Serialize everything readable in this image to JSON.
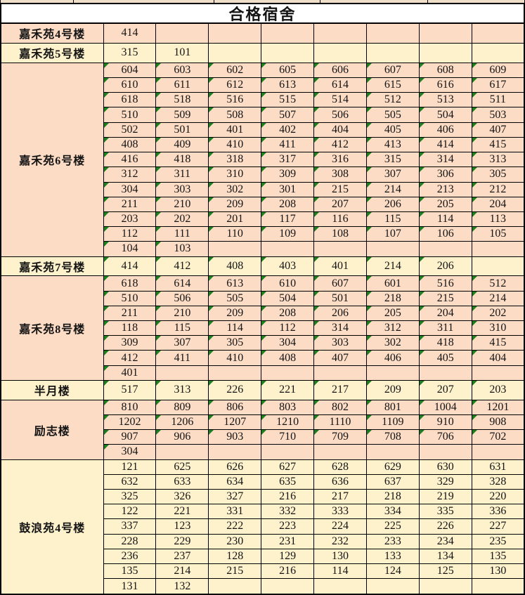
{
  "title": "合格宿舍",
  "colors": {
    "peach": "#FCDCC5",
    "yellow": "#FEF2CC",
    "marker_green": "#1E7F1E",
    "strip_fill": "#EFDEC8",
    "grid_line": "#000000"
  },
  "sections": [
    {
      "name": "嘉禾苑4号楼",
      "color": "peach",
      "markers": false,
      "rows": [
        [
          "414",
          "",
          "",
          "",
          "",
          "",
          "",
          ""
        ]
      ]
    },
    {
      "name": "嘉禾苑5号楼",
      "color": "yellow",
      "markers": false,
      "rows": [
        [
          "315",
          "101",
          "",
          "",
          "",
          "",
          "",
          ""
        ]
      ]
    },
    {
      "name": "嘉禾苑6号楼",
      "color": "peach",
      "markers": true,
      "rows": [
        [
          "604",
          "603",
          "602",
          "605",
          "606",
          "607",
          "608",
          "609"
        ],
        [
          "610",
          "611",
          "612",
          "613",
          "614",
          "615",
          "616",
          "617"
        ],
        [
          "618",
          "518",
          "516",
          "515",
          "514",
          "512",
          "513",
          "511"
        ],
        [
          "510",
          "509",
          "508",
          "507",
          "506",
          "505",
          "504",
          "503"
        ],
        [
          "502",
          "501",
          "401",
          "402",
          "404",
          "405",
          "406",
          "407"
        ],
        [
          "408",
          "409",
          "410",
          "411",
          "412",
          "413",
          "414",
          "415"
        ],
        [
          "416",
          "418",
          "318",
          "317",
          "316",
          "315",
          "314",
          "313"
        ],
        [
          "312",
          "311",
          "310",
          "309",
          "308",
          "307",
          "306",
          "305"
        ],
        [
          "304",
          "303",
          "302",
          "301",
          "215",
          "214",
          "213",
          "212"
        ],
        [
          "211",
          "210",
          "209",
          "208",
          "207",
          "206",
          "205",
          "204"
        ],
        [
          "203",
          "202",
          "201",
          "117",
          "116",
          "115",
          "114",
          "113"
        ],
        [
          "112",
          "111",
          "110",
          "109",
          "108",
          "107",
          "106",
          "105"
        ],
        [
          "104",
          "103",
          "",
          "",
          "",
          "",
          "",
          ""
        ]
      ]
    },
    {
      "name": "嘉禾苑7号楼",
      "color": "yellow",
      "markers": true,
      "rows": [
        [
          "414",
          "412",
          "408",
          "403",
          "401",
          "214",
          "206",
          ""
        ]
      ]
    },
    {
      "name": "嘉禾苑8号楼",
      "color": "peach",
      "markers": true,
      "rows": [
        [
          "618",
          "614",
          "613",
          "610",
          "607",
          "601",
          "516",
          "512"
        ],
        [
          "510",
          "506",
          "505",
          "504",
          "501",
          "218",
          "215",
          "214"
        ],
        [
          "211",
          "210",
          "209",
          "208",
          "206",
          "205",
          "204",
          "202"
        ],
        [
          "118",
          "115",
          "114",
          "112",
          "314",
          "312",
          "311",
          "310"
        ],
        [
          "309",
          "307",
          "305",
          "304",
          "303",
          "302",
          "418",
          "415"
        ],
        [
          "412",
          "411",
          "410",
          "408",
          "407",
          "406",
          "405",
          "404"
        ],
        [
          "401",
          "",
          "",
          "",
          "",
          "",
          "",
          ""
        ]
      ]
    },
    {
      "name": "半月楼",
      "color": "yellow",
      "markers": true,
      "rows": [
        [
          "517",
          "313",
          "226",
          "221",
          "217",
          "209",
          "207",
          "203"
        ]
      ]
    },
    {
      "name": "励志楼",
      "color": "peach",
      "markers": true,
      "rows": [
        [
          "810",
          "809",
          "806",
          "803",
          "802",
          "801",
          "1004",
          "1201"
        ],
        [
          "1202",
          "1206",
          "1207",
          "1210",
          "1110",
          "1109",
          "910",
          "908"
        ],
        [
          "907",
          "906",
          "903",
          "710",
          "709",
          "708",
          "706",
          "702"
        ],
        [
          "304",
          "",
          "",
          "",
          "",
          "",
          "",
          ""
        ]
      ]
    },
    {
      "name": "鼓浪苑4号楼",
      "color": "yellow",
      "markers": false,
      "rows": [
        [
          "121",
          "625",
          "626",
          "627",
          "628",
          "629",
          "630",
          "631"
        ],
        [
          "632",
          "633",
          "634",
          "635",
          "636",
          "637",
          "329",
          "328"
        ],
        [
          "325",
          "326",
          "327",
          "216",
          "217",
          "218",
          "219",
          "220"
        ],
        [
          "122",
          "221",
          "331",
          "332",
          "333",
          "334",
          "335",
          "336"
        ],
        [
          "337",
          "123",
          "222",
          "223",
          "224",
          "225",
          "226",
          "227"
        ],
        [
          "228",
          "229",
          "230",
          "231",
          "232",
          "233",
          "234",
          "235"
        ],
        [
          "236",
          "237",
          "128",
          "129",
          "130",
          "133",
          "134",
          "135"
        ],
        [
          "135",
          "214",
          "215",
          "216",
          "114",
          "124",
          "125",
          "130"
        ],
        [
          "131",
          "132",
          "",
          "",
          "",
          "",
          "",
          ""
        ]
      ]
    }
  ]
}
